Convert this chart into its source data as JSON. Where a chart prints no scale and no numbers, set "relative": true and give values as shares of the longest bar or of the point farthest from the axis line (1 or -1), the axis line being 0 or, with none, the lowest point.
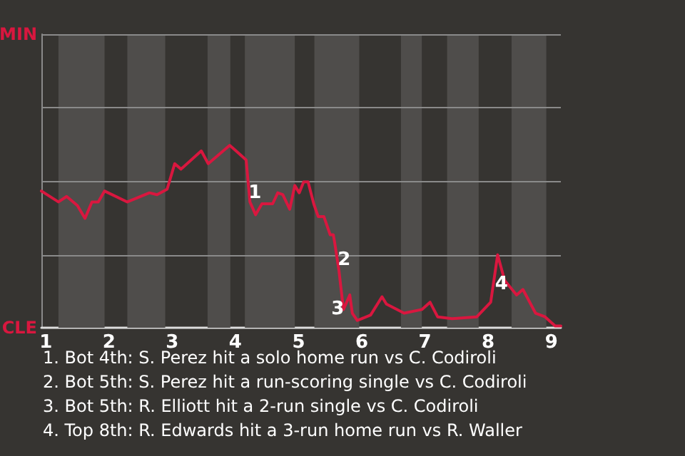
{
  "chart_data": {
    "type": "line",
    "relative": true,
    "x": [
      0.93,
      1.2,
      1.33,
      1.5,
      1.62,
      1.73,
      1.83,
      1.93,
      2.29,
      2.64,
      2.76,
      2.92,
      3.04,
      3.14,
      3.46,
      3.57,
      3.91,
      4.01,
      4.17,
      4.23,
      4.32,
      4.42,
      4.59,
      4.67,
      4.75,
      4.86,
      4.94,
      5.01,
      5.08,
      5.15,
      5.24,
      5.31,
      5.4,
      5.5,
      5.55,
      5.57,
      5.64,
      5.71,
      5.81,
      5.85,
      5.93,
      6.14,
      6.32,
      6.39,
      6.67,
      6.95,
      7.08,
      7.2,
      7.43,
      7.82,
      8.04,
      8.15,
      8.26,
      8.45,
      8.55,
      8.75,
      8.9,
      9.06,
      9.15
    ],
    "series": [
      {
        "color": "#d9173f",
        "values": [
          0.75,
          0.69,
          0.72,
          0.67,
          0.6,
          0.69,
          0.69,
          0.75,
          0.69,
          0.74,
          0.73,
          0.76,
          0.9,
          0.87,
          0.97,
          0.9,
          1,
          0.97,
          0.92,
          0.69,
          0.62,
          0.68,
          0.68,
          0.74,
          0.73,
          0.65,
          0.78,
          0.74,
          0.8,
          0.8,
          0.68,
          0.61,
          0.61,
          0.51,
          0.51,
          0.47,
          0.31,
          0.1,
          0.18,
          0.08,
          0.04,
          0.07,
          0.17,
          0.13,
          0.08,
          0.1,
          0.14,
          0.06,
          0.05,
          0.06,
          0.14,
          0.4,
          0.26,
          0.18,
          0.21,
          0.08,
          0.06,
          0.01,
          0.01
        ]
      }
    ],
    "xlim": [
      0.93,
      9.15
    ],
    "xticks": [
      1,
      2,
      3,
      4,
      5,
      6,
      7,
      8,
      9
    ],
    "marker": "none",
    "line_style": "solid",
    "ref_lines": [
      {
        "axis": "y",
        "value": 0.4,
        "color": "#8a8a8a"
      },
      {
        "axis": "y",
        "value": 0.8,
        "color": "#8a8a8a"
      },
      {
        "axis": "y",
        "value": 1.21,
        "color": "#8a8a8a"
      },
      {
        "axis": "y",
        "value": 1.61,
        "color": "#8a8a8a"
      }
    ],
    "bands": [
      {
        "axis": "x",
        "from": 1.2,
        "to": 1.93,
        "color": "#4f4d4b"
      },
      {
        "axis": "x",
        "from": 2.29,
        "to": 2.89,
        "color": "#4f4d4b"
      },
      {
        "axis": "x",
        "from": 3.56,
        "to": 3.92,
        "color": "#4f4d4b"
      },
      {
        "axis": "x",
        "from": 4.15,
        "to": 4.94,
        "color": "#4f4d4b"
      },
      {
        "axis": "x",
        "from": 5.25,
        "to": 5.96,
        "color": "#4f4d4b"
      },
      {
        "axis": "x",
        "from": 6.62,
        "to": 6.95,
        "color": "#4f4d4b"
      },
      {
        "axis": "x",
        "from": 7.35,
        "to": 7.85,
        "color": "#4f4d4b"
      },
      {
        "axis": "x",
        "from": 8.37,
        "to": 8.92,
        "color": "#4f4d4b"
      }
    ],
    "annotations": [
      "MIN",
      "CLE",
      {
        "text": "1",
        "x": 4.31,
        "y": 0.74
      },
      {
        "text": "2",
        "x": 5.72,
        "y": 0.37
      },
      {
        "text": "3",
        "x": 5.62,
        "y": 0.1
      },
      {
        "text": "4",
        "x": 8.21,
        "y": 0.24
      },
      "1. Bot 4th: S. Perez hit a solo home run vs C. Codiroli",
      "2. Bot 5th: S. Perez hit a run-scoring single vs C. Codiroli",
      "3. Bot 5th: R. Elliott hit a 2-run single vs C. Codiroli",
      "4. Top 8th: R. Edwards hit a 3-run home run vs R. Waller"
    ]
  }
}
